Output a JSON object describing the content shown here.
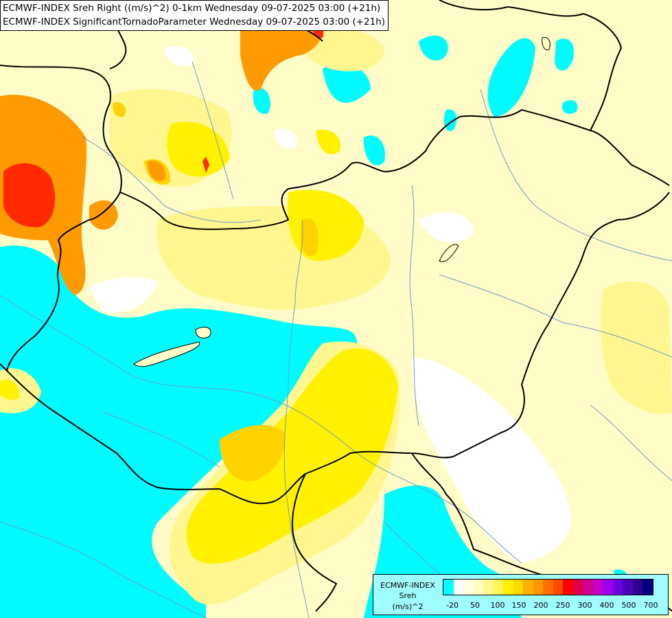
{
  "title": {
    "line1": "ECMWF-INDEX Sreh Right ((m/s)^2) 0-1km Wednesday 09-07-2025 03:00 (+21h)",
    "line2": "ECMWF-INDEX SignificantTornadoParameter Wednesday 09-07-2025 03:00 (+21h)"
  },
  "legend": {
    "line1": "ECMWF-INDEX",
    "line2": "Sreh",
    "line3": "(m/s)^2",
    "colors": [
      "#00ffff",
      "#ffffff",
      "#ffffe0",
      "#fffcc0",
      "#fff890",
      "#fff458",
      "#fff000",
      "#ffd800",
      "#ffb000",
      "#ff9800",
      "#ff7000",
      "#ff4800",
      "#ff0000",
      "#e0004c",
      "#d00090",
      "#c800c8",
      "#a000f0",
      "#7000e0",
      "#4800b8",
      "#300090",
      "#000080"
    ],
    "tick_labels": [
      "-20",
      "50",
      "100",
      "150",
      "200",
      "250",
      "300",
      "400",
      "500",
      "700"
    ]
  },
  "map_colors": {
    "background": "#fffcc8",
    "cyan": "#00fbff",
    "white": "#ffffff",
    "light_yellow": "#fff690",
    "yellow": "#fff100",
    "gold": "#ffd200",
    "orange": "#ff9a00",
    "red": "#ff2a00",
    "border": "#000000",
    "river": "#6e9bc8"
  }
}
